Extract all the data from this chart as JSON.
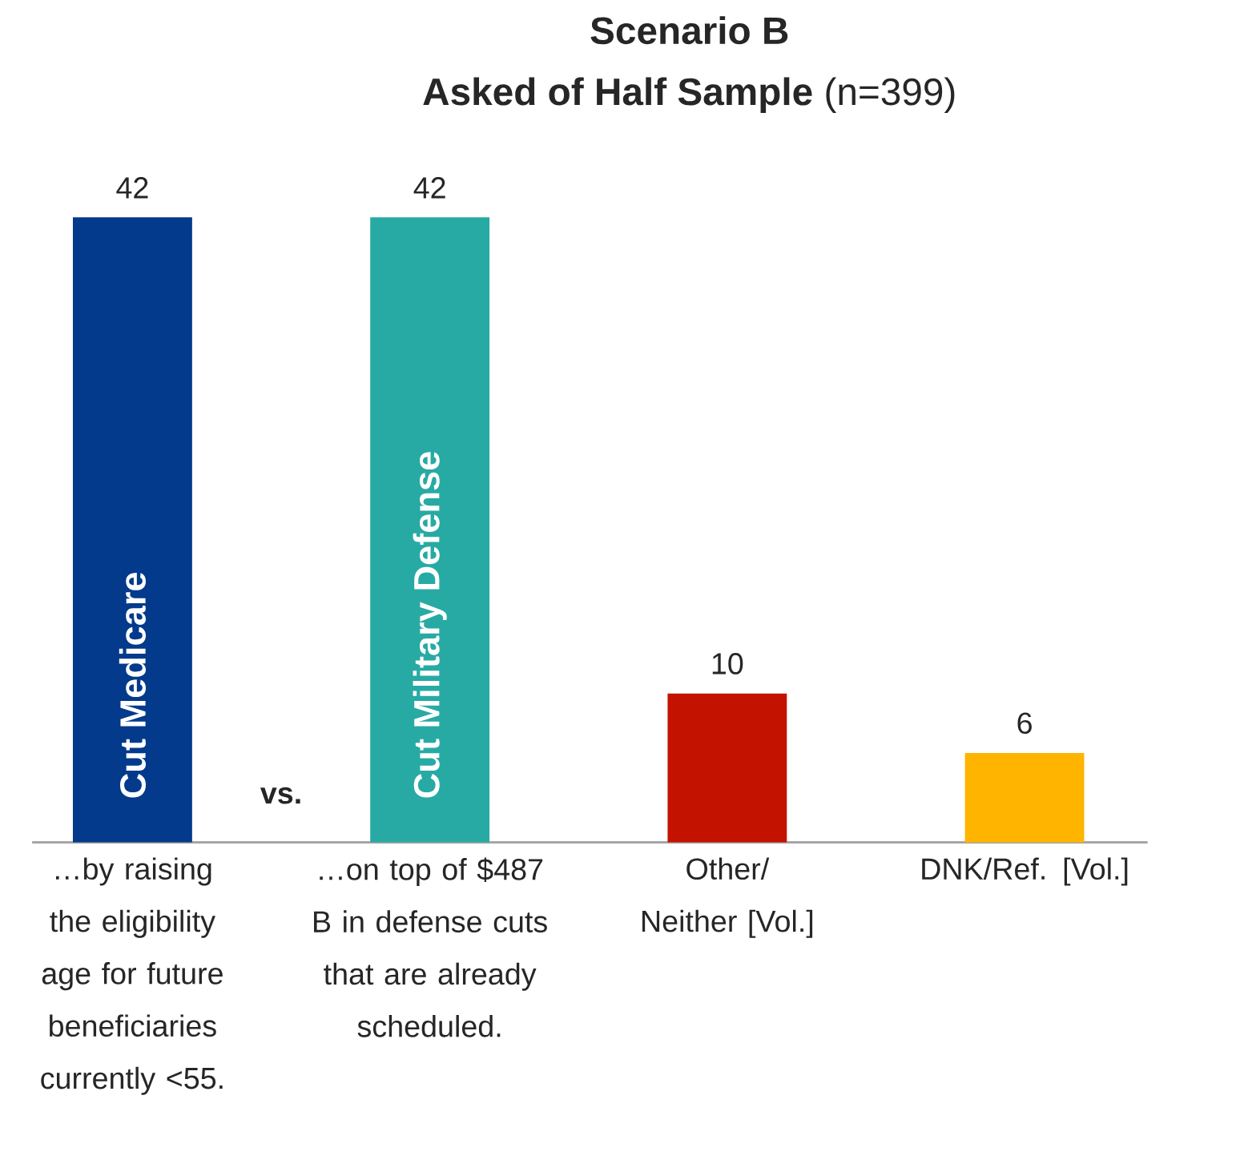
{
  "chart_data": {
    "type": "bar",
    "title": "Scenario B",
    "subtitle": "**Asked of Half Sample** (n=399)",
    "categories": [
      "…by raising the eligibility age for future beneficiaries currently <55.",
      "…on top of $487 B in defense cuts that are already scheduled.",
      "Other/ Neither [Vol.]",
      "DNK/Ref. [Vol.]"
    ],
    "values": [
      42,
      42,
      10,
      6
    ],
    "colors": [
      "#033a8b",
      "#28aaa4",
      "#c41200",
      "#ffb400"
    ],
    "data_labels": true,
    "annotations": [
      "Cut Medicare",
      "Cut Military Defense",
      "vs."
    ]
  }
}
